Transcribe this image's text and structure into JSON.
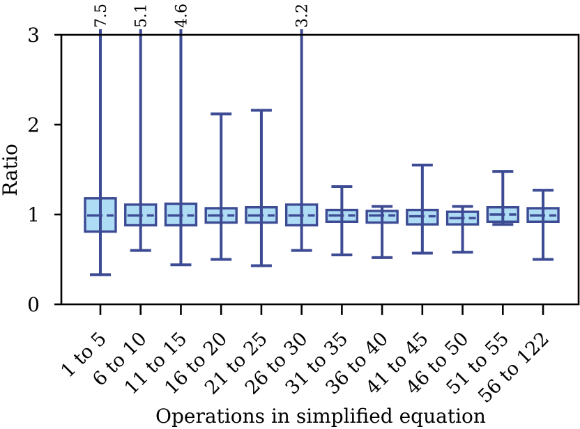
{
  "figure": {
    "background": "#ffffff"
  },
  "chart_data": {
    "type": "box",
    "title": "",
    "xlabel": "Operations in simplified equation",
    "ylabel": "Ratio",
    "ylim": [
      0,
      3
    ],
    "yticks": [
      0,
      1,
      2,
      3
    ],
    "grid": false,
    "legend": null,
    "categories": [
      "1 to 5",
      "6 to 10",
      "11 to 15",
      "16 to 20",
      "21 to 25",
      "26 to 30",
      "31 to 35",
      "36 to 40",
      "41 to 45",
      "46 to 50",
      "51 to 55",
      "56 to 122"
    ],
    "boxes": [
      {
        "category": "1 to 5",
        "whisker_low": 0.33,
        "q1": 0.81,
        "median": 0.99,
        "q3": 1.18,
        "whisker_high": 7.5,
        "clipped_at_top": true,
        "top_annotation": "7.5"
      },
      {
        "category": "6 to 10",
        "whisker_low": 0.6,
        "q1": 0.88,
        "median": 0.99,
        "q3": 1.11,
        "whisker_high": 5.1,
        "clipped_at_top": true,
        "top_annotation": "5.1"
      },
      {
        "category": "11 to 15",
        "whisker_low": 0.44,
        "q1": 0.88,
        "median": 0.99,
        "q3": 1.12,
        "whisker_high": 4.6,
        "clipped_at_top": true,
        "top_annotation": "4.6"
      },
      {
        "category": "16 to 20",
        "whisker_low": 0.5,
        "q1": 0.91,
        "median": 0.99,
        "q3": 1.07,
        "whisker_high": 2.12,
        "clipped_at_top": false,
        "top_annotation": ""
      },
      {
        "category": "21 to 25",
        "whisker_low": 0.43,
        "q1": 0.91,
        "median": 0.99,
        "q3": 1.08,
        "whisker_high": 2.16,
        "clipped_at_top": false,
        "top_annotation": ""
      },
      {
        "category": "26 to 30",
        "whisker_low": 0.6,
        "q1": 0.88,
        "median": 0.99,
        "q3": 1.11,
        "whisker_high": 3.2,
        "clipped_at_top": true,
        "top_annotation": "3.2"
      },
      {
        "category": "31 to 35",
        "whisker_low": 0.55,
        "q1": 0.92,
        "median": 0.99,
        "q3": 1.05,
        "whisker_high": 1.31,
        "clipped_at_top": false,
        "top_annotation": ""
      },
      {
        "category": "36 to 40",
        "whisker_low": 0.52,
        "q1": 0.91,
        "median": 0.99,
        "q3": 1.04,
        "whisker_high": 1.09,
        "clipped_at_top": false,
        "top_annotation": ""
      },
      {
        "category": "41 to 45",
        "whisker_low": 0.57,
        "q1": 0.89,
        "median": 0.98,
        "q3": 1.05,
        "whisker_high": 1.55,
        "clipped_at_top": false,
        "top_annotation": ""
      },
      {
        "category": "46 to 50",
        "whisker_low": 0.58,
        "q1": 0.89,
        "median": 0.96,
        "q3": 1.03,
        "whisker_high": 1.09,
        "clipped_at_top": false,
        "top_annotation": ""
      },
      {
        "category": "51 to 55",
        "whisker_low": 0.89,
        "q1": 0.92,
        "median": 1.0,
        "q3": 1.08,
        "whisker_high": 1.48,
        "clipped_at_top": false,
        "top_annotation": ""
      },
      {
        "category": "56 to 122",
        "whisker_low": 0.5,
        "q1": 0.92,
        "median": 0.99,
        "q3": 1.07,
        "whisker_high": 1.27,
        "clipped_at_top": false,
        "top_annotation": ""
      }
    ],
    "colors": {
      "box_fill": "#aedcf4",
      "box_line": "#3d4b94",
      "axis": "#000000",
      "text": "#000000"
    }
  }
}
